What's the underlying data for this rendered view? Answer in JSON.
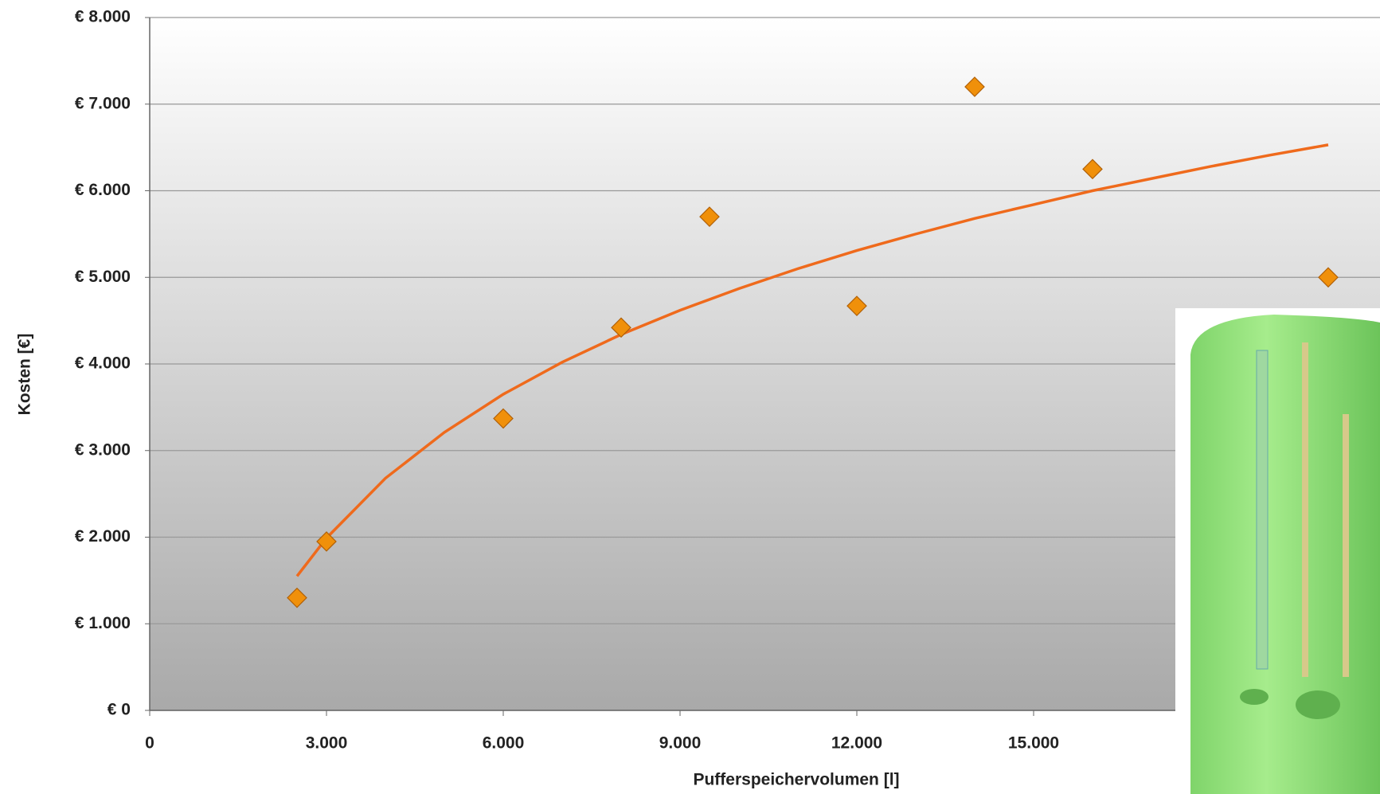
{
  "chart_data": {
    "type": "scatter",
    "x_label": "Pufferspeichervolumen [l]",
    "y_label": "Kosten [€]",
    "x": [
      2500,
      3000,
      6000,
      8000,
      9500,
      12000,
      14000,
      16000,
      20000
    ],
    "values": [
      1300,
      1950,
      3370,
      4420,
      5700,
      4670,
      7200,
      6250,
      5000
    ],
    "color": "#f0900a",
    "trendline": {
      "color": "#ef6a1c",
      "x": [
        2500,
        3000,
        4000,
        5000,
        6000,
        7000,
        8000,
        9000,
        10000,
        11000,
        12000,
        13000,
        14000,
        15000,
        16000,
        17000,
        18000,
        19000,
        20000
      ],
      "values": [
        1550,
        1990,
        2680,
        3210,
        3650,
        4020,
        4340,
        4620,
        4870,
        5100,
        5310,
        5500,
        5680,
        5840,
        6000,
        6140,
        6280,
        6410,
        6530
      ]
    },
    "xlim": [
      0,
      21000
    ],
    "ylim": [
      0,
      8000
    ],
    "xticks": [
      0,
      {
        "value": 3000,
        "label": "3.000"
      },
      {
        "value": 6000,
        "label": "6.000"
      },
      {
        "value": 9000,
        "label": "9.000"
      },
      {
        "value": 12000,
        "label": "12.000"
      },
      {
        "value": 15000,
        "label": "15.000"
      }
    ],
    "yticks": [
      {
        "value": 0,
        "label": "€ 0"
      },
      {
        "value": 1000,
        "label": "€ 1.000"
      },
      {
        "value": 2000,
        "label": "€ 2.000"
      },
      {
        "value": 3000,
        "label": "€ 3.000"
      },
      {
        "value": 4000,
        "label": "€ 4.000"
      },
      {
        "value": 5000,
        "label": "€ 5.000"
      },
      {
        "value": 6000,
        "label": "€ 6.000"
      },
      {
        "value": 7000,
        "label": "€ 7.000"
      },
      {
        "value": 8000,
        "label": "€ 8.000"
      }
    ],
    "grid": true
  }
}
